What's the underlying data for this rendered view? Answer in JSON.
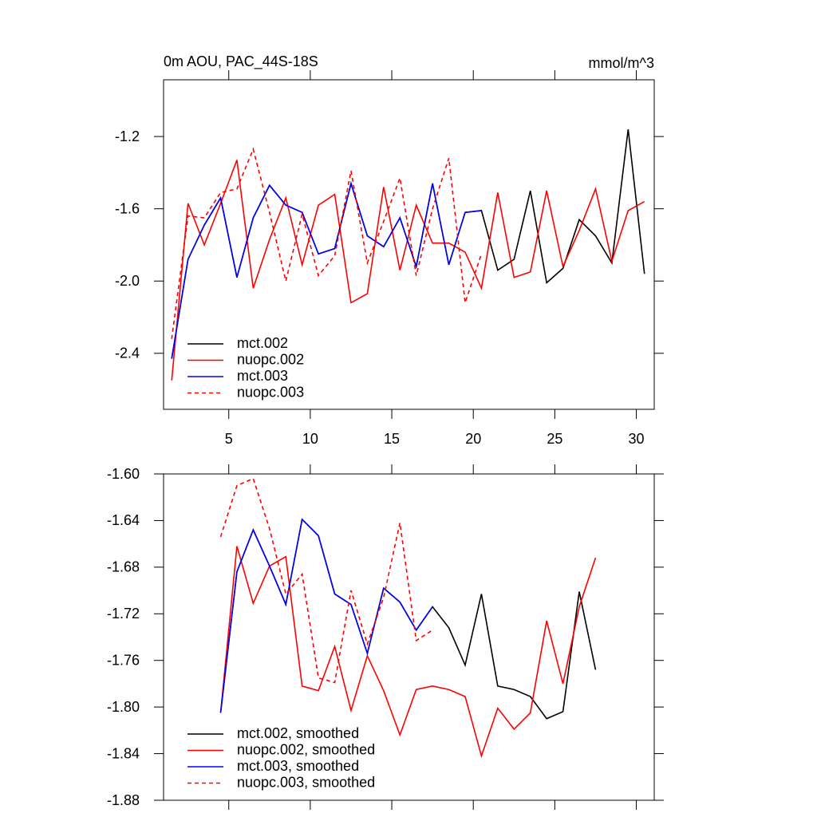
{
  "chart_data": [
    {
      "type": "line",
      "title": "0m AOU, PAC_44S-18S",
      "units": "mmol/m^3",
      "x": [
        1.5,
        2.5,
        3.5,
        4.5,
        5.5,
        6.5,
        7.5,
        8.5,
        9.5,
        10.5,
        11.5,
        12.5,
        13.5,
        14.5,
        15.5,
        16.5,
        17.5,
        18.5,
        19.5,
        20.5,
        21.5,
        22.5,
        23.5,
        24.5,
        25.5,
        26.5,
        27.5,
        28.5,
        29.5,
        30.5
      ],
      "xlim": [
        1,
        31.1
      ],
      "ylim": [
        -2.71,
        -0.886
      ],
      "xticks": [
        5,
        10,
        15,
        20,
        25,
        30
      ],
      "yticks": [
        -2.4,
        {
          "value": -2,
          "label": "-2.0"
        },
        -1.6,
        -1.2
      ],
      "legend": "lower left",
      "series": [
        {
          "name": "mct.002",
          "color": "#000000",
          "dash": false,
          "values": [
            -2.43,
            -1.88,
            -1.69,
            -1.54,
            -1.98,
            -1.65,
            -1.47,
            -1.58,
            -1.62,
            -1.85,
            -1.82,
            -1.46,
            -1.75,
            -1.81,
            -1.65,
            -1.92,
            -1.46,
            -1.91,
            -1.62,
            -1.61,
            -1.94,
            -1.88,
            -1.5,
            -2.01,
            -1.93,
            -1.66,
            -1.75,
            -1.9,
            -1.16,
            -1.96
          ]
        },
        {
          "name": "nuopc.002",
          "color": "#ff0000",
          "dash": false,
          "values": [
            -2.55,
            -1.57,
            -1.8,
            -1.57,
            -1.33,
            -2.04,
            -1.77,
            -1.54,
            -1.91,
            -1.58,
            -1.52,
            -2.12,
            -2.07,
            -1.48,
            -1.94,
            -1.58,
            -1.79,
            -1.79,
            -1.84,
            -2.04,
            -1.51,
            -1.98,
            -1.95,
            -1.5,
            -1.92,
            -1.72,
            -1.49,
            -1.89,
            -1.61,
            -1.56
          ]
        },
        {
          "name": "mct.003",
          "color": "#0000ff",
          "dash": false,
          "values": [
            -2.43,
            -1.88,
            -1.69,
            -1.54,
            -1.98,
            -1.65,
            -1.47,
            -1.58,
            -1.62,
            -1.85,
            -1.82,
            -1.46,
            -1.75,
            -1.81,
            -1.65,
            -1.92,
            -1.46,
            -1.91,
            -1.62,
            -1.61,
            null,
            null,
            null,
            null,
            null,
            null,
            null,
            null,
            null,
            null
          ]
        },
        {
          "name": "nuopc.003",
          "color": "#ff0000",
          "dash": true,
          "values": [
            -2.32,
            -1.64,
            -1.65,
            -1.51,
            -1.49,
            -1.27,
            -1.62,
            -2.0,
            -1.63,
            -1.97,
            -1.86,
            -1.39,
            -1.9,
            -1.67,
            -1.43,
            -1.97,
            -1.6,
            -1.32,
            -2.12,
            -1.85,
            null,
            null,
            null,
            null,
            null,
            null,
            null,
            null,
            null,
            null
          ]
        }
      ]
    },
    {
      "type": "line",
      "x": [
        4.5,
        5.5,
        6.5,
        7.5,
        8.5,
        9.5,
        10.5,
        11.5,
        12.5,
        13.5,
        14.5,
        15.5,
        16.5,
        17.5,
        18.5,
        19.5,
        20.5,
        21.5,
        22.5,
        23.5,
        24.5,
        25.5,
        26.5,
        27.5
      ],
      "xlim": [
        1,
        31.1
      ],
      "ylim": [
        -1.88,
        -1.6
      ],
      "xticks": [
        5,
        10,
        15,
        20,
        25,
        30
      ],
      "yticks": [
        {
          "value": -1.88,
          "label": "-1.88"
        },
        {
          "value": -1.84,
          "label": "-1.84"
        },
        {
          "value": -1.8,
          "label": "-1.80"
        },
        {
          "value": -1.76,
          "label": "-1.76"
        },
        {
          "value": -1.72,
          "label": "-1.72"
        },
        {
          "value": -1.68,
          "label": "-1.68"
        },
        {
          "value": -1.64,
          "label": "-1.64"
        },
        {
          "value": -1.6,
          "label": "-1.60"
        }
      ],
      "legend": "lower left",
      "series": [
        {
          "name": "mct.002, smoothed",
          "color": "#000000",
          "dash": false,
          "values": [
            -1.805,
            -1.684,
            -1.648,
            -1.679,
            -1.712,
            -1.639,
            -1.653,
            -1.703,
            -1.712,
            -1.754,
            -1.698,
            -1.71,
            -1.734,
            -1.714,
            -1.732,
            -1.764,
            -1.703,
            -1.782,
            -1.785,
            -1.791,
            -1.81,
            -1.804,
            -1.701,
            -1.768
          ]
        },
        {
          "name": "nuopc.002, smoothed",
          "color": "#ff0000",
          "dash": false,
          "values": [
            -1.805,
            -1.662,
            -1.711,
            -1.679,
            -1.671,
            -1.782,
            -1.786,
            -1.748,
            -1.803,
            -1.756,
            -1.786,
            -1.824,
            -1.785,
            -1.782,
            -1.785,
            -1.791,
            -1.842,
            -1.801,
            -1.819,
            -1.805,
            -1.726,
            -1.78,
            -1.714,
            -1.672
          ]
        },
        {
          "name": "mct.003, smoothed",
          "color": "#0000ff",
          "dash": false,
          "values": [
            -1.805,
            -1.684,
            -1.648,
            -1.679,
            -1.712,
            -1.639,
            -1.653,
            -1.703,
            -1.712,
            -1.754,
            -1.698,
            -1.71,
            -1.734,
            -1.714,
            null,
            null,
            null,
            null,
            null,
            null,
            null,
            null,
            null,
            null
          ]
        },
        {
          "name": "nuopc.003, smoothed",
          "color": "#ff0000",
          "dash": true,
          "values": [
            -1.654,
            -1.61,
            -1.604,
            -1.647,
            -1.703,
            -1.686,
            -1.775,
            -1.779,
            -1.7,
            -1.746,
            -1.706,
            -1.642,
            -1.743,
            -1.734,
            null,
            null,
            null,
            null,
            null,
            null,
            null,
            null,
            null,
            null
          ]
        }
      ]
    }
  ]
}
